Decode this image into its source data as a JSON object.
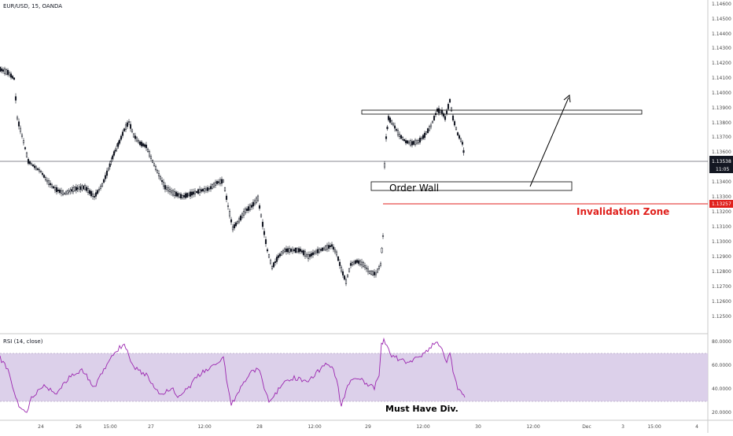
{
  "header": {
    "symbol_label": "EUR/USD, 15, OANDA"
  },
  "rsi": {
    "label": "RSI (14, close)",
    "ticks": [
      "80.0000",
      "60.0000",
      "40.0000",
      "20.0000"
    ]
  },
  "price_axis": {
    "ticks": [
      "1.14600",
      "1.14500",
      "1.14400",
      "1.14300",
      "1.14200",
      "1.14100",
      "1.14000",
      "1.13900",
      "1.13800",
      "1.13700",
      "1.13600",
      "1.13400",
      "1.13300",
      "1.13200",
      "1.13100",
      "1.13000",
      "1.12900",
      "1.12800",
      "1.12700",
      "1.12600",
      "1.12500"
    ],
    "current_price": "1.13538",
    "countdown": "11:05",
    "invalidation_price": "1.13257"
  },
  "time_axis": {
    "ticks": [
      "24",
      "26",
      "15:00",
      "27",
      "12:00",
      "28",
      "12:00",
      "29",
      "12:00",
      "30",
      "12:00",
      "Dec",
      "3",
      "15:00",
      "4"
    ]
  },
  "annotations": {
    "order_wall": "Order Wall",
    "invalidation_zone": "Invalidation Zone",
    "must_have_div": "Must Have Div."
  },
  "colors": {
    "candle": "#131722",
    "rsi_line": "#9c27b0",
    "rsi_band": "#d6c8e6",
    "invalidation": "#e0201c",
    "price_badge": "#131722"
  }
}
